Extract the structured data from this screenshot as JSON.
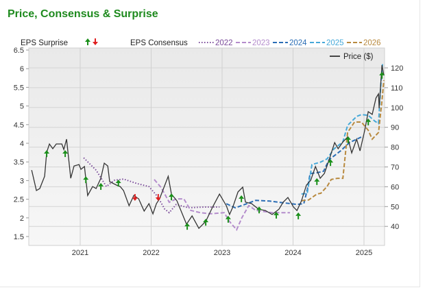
{
  "title": "Price, Consensus & Surprise",
  "colors": {
    "price": "#333333",
    "surprise_up": "#1a8f1a",
    "surprise_down": "#e02020",
    "c2022": "#7a4a9a",
    "c2023": "#b48ccc",
    "c2024": "#2a6db5",
    "c2025": "#45a8d8",
    "c2026": "#b8893e",
    "title": "#1e8a1e"
  },
  "chart_data": {
    "type": "line",
    "legend": {
      "surprise_label": "EPS Surprise",
      "consensus_label": "EPS Consensus",
      "price_label": "Price ($)",
      "placement": "top"
    },
    "x_ticks": [
      "2021",
      "2022",
      "2023",
      "2024",
      "2025"
    ],
    "y_left_ticks": [
      "6.5",
      "6",
      "5.5",
      "5",
      "4.5",
      "4",
      "3.5",
      "3",
      "2.5",
      "2",
      "1.5"
    ],
    "y_right_ticks": [
      "120",
      "110",
      "100",
      "90",
      "80",
      "70",
      "60",
      "50",
      "40"
    ],
    "y_left_range": [
      1.5,
      6.5
    ],
    "y_right_range": [
      40,
      120
    ],
    "grid": true,
    "price": {
      "name": "Price ($)",
      "points": [
        [
          "2020-04-24",
          68.4
        ],
        [
          "2020-05-18",
          58.1
        ],
        [
          "2020-06-05",
          59.1
        ],
        [
          "2020-06-30",
          65.3
        ],
        [
          "2020-07-10",
          77.4
        ],
        [
          "2020-07-24",
          81.6
        ],
        [
          "2020-08-11",
          79.2
        ],
        [
          "2020-08-29",
          81.6
        ],
        [
          "2020-09-27",
          81.6
        ],
        [
          "2020-10-07",
          78.8
        ],
        [
          "2020-10-21",
          84.0
        ],
        [
          "2020-11-12",
          64.3
        ],
        [
          "2020-11-29",
          70.5
        ],
        [
          "2020-12-24",
          71.2
        ],
        [
          "2021-01-04",
          68.8
        ],
        [
          "2021-01-22",
          70.2
        ],
        [
          "2021-02-08",
          55.6
        ],
        [
          "2021-03-03",
          60.1
        ],
        [
          "2021-03-21",
          59.1
        ],
        [
          "2021-04-15",
          64.3
        ],
        [
          "2021-05-02",
          71.9
        ],
        [
          "2021-05-20",
          70.5
        ],
        [
          "2021-05-30",
          62.6
        ],
        [
          "2021-07-05",
          60.8
        ],
        [
          "2021-07-23",
          60.1
        ],
        [
          "2021-08-10",
          58.1
        ],
        [
          "2021-09-08",
          50.4
        ],
        [
          "2021-10-02",
          55.6
        ],
        [
          "2021-10-27",
          53.9
        ],
        [
          "2021-11-25",
          47.7
        ],
        [
          "2021-12-19",
          51.5
        ],
        [
          "2022-01-09",
          46.3
        ],
        [
          "2022-01-27",
          51.5
        ],
        [
          "2022-02-13",
          53.9
        ],
        [
          "2022-03-27",
          65.3
        ],
        [
          "2022-04-13",
          56.3
        ],
        [
          "2022-05-11",
          52.9
        ],
        [
          "2022-06-30",
          41.1
        ],
        [
          "2022-07-28",
          45.3
        ],
        [
          "2022-09-02",
          39.0
        ],
        [
          "2022-10-07",
          42.5
        ],
        [
          "2022-11-12",
          49.8
        ],
        [
          "2022-12-17",
          56.3
        ],
        [
          "2023-01-22",
          50.4
        ],
        [
          "2023-02-08",
          46.0
        ],
        [
          "2023-02-25",
          49.8
        ],
        [
          "2023-03-21",
          57.4
        ],
        [
          "2023-04-15",
          59.8
        ],
        [
          "2023-04-29",
          52.2
        ],
        [
          "2023-05-30",
          51.5
        ],
        [
          "2023-07-05",
          48.7
        ],
        [
          "2023-08-10",
          48.0
        ],
        [
          "2023-09-14",
          46.0
        ],
        [
          "2023-10-19",
          48.7
        ],
        [
          "2023-11-10",
          52.2
        ],
        [
          "2023-12-04",
          54.6
        ],
        [
          "2024-01-02",
          49.8
        ],
        [
          "2024-01-20",
          48.0
        ],
        [
          "2024-02-13",
          52.9
        ],
        [
          "2024-03-08",
          60.8
        ],
        [
          "2024-03-30",
          63.3
        ],
        [
          "2024-04-24",
          70.2
        ],
        [
          "2024-05-18",
          64.3
        ],
        [
          "2024-06-09",
          66.7
        ],
        [
          "2024-07-03",
          73.6
        ],
        [
          "2024-08-01",
          82.3
        ],
        [
          "2024-08-19",
          79.2
        ],
        [
          "2024-09-13",
          82.6
        ],
        [
          "2024-10-07",
          85.1
        ],
        [
          "2024-10-28",
          77.1
        ],
        [
          "2024-11-23",
          84.0
        ],
        [
          "2024-12-10",
          78.1
        ],
        [
          "2025-01-04",
          88.5
        ],
        [
          "2025-01-22",
          97.9
        ],
        [
          "2025-02-12",
          96.5
        ],
        [
          "2025-03-01",
          104.8
        ],
        [
          "2025-03-14",
          106.9
        ],
        [
          "2025-03-17",
          99.6
        ],
        [
          "2025-04-01",
          121.4
        ],
        [
          "2025-04-11",
          116.2
        ]
      ]
    },
    "consensus": [
      {
        "name": "2022",
        "style": "dotted",
        "color_key": "c2022",
        "points": [
          [
            "2021-01-18",
            3.61
          ],
          [
            "2021-03-21",
            3.28
          ],
          [
            "2021-05-13",
            2.84
          ],
          [
            "2021-06-24",
            3.01
          ],
          [
            "2021-08-10",
            3.04
          ],
          [
            "2021-10-19",
            2.92
          ],
          [
            "2021-12-19",
            2.84
          ],
          [
            "2022-02-03",
            2.57
          ],
          [
            "2022-03-08",
            2.24
          ],
          [
            "2022-04-02",
            2.14
          ],
          [
            "2022-05-07",
            2.36
          ],
          [
            "2022-07-10",
            2.27
          ],
          [
            "2022-09-27",
            2.29
          ],
          [
            "2022-12-17",
            2.29
          ]
        ]
      },
      {
        "name": "2023",
        "style": "dashed",
        "color_key": "c2023",
        "points": [
          [
            "2022-01-16",
            3.03
          ],
          [
            "2022-02-20",
            2.82
          ],
          [
            "2022-04-02",
            2.42
          ],
          [
            "2022-05-07",
            2.51
          ],
          [
            "2022-06-16",
            2.51
          ],
          [
            "2022-07-21",
            2.2
          ],
          [
            "2022-09-09",
            2.14
          ],
          [
            "2022-11-01",
            2.11
          ],
          [
            "2023-01-11",
            2.14
          ],
          [
            "2023-02-08",
            1.9
          ],
          [
            "2023-03-14",
            1.68
          ],
          [
            "2023-04-11",
            2.01
          ],
          [
            "2023-05-16",
            2.33
          ],
          [
            "2023-06-21",
            2.2
          ],
          [
            "2023-09-14",
            2.14
          ],
          [
            "2023-12-15",
            2.14
          ]
        ]
      },
      {
        "name": "2024",
        "style": "dashed",
        "color_key": "c2024",
        "points": [
          [
            "2023-01-22",
            2.38
          ],
          [
            "2023-03-07",
            2.27
          ],
          [
            "2023-04-26",
            2.36
          ],
          [
            "2023-06-21",
            2.47
          ],
          [
            "2023-08-31",
            2.45
          ],
          [
            "2023-10-19",
            2.42
          ],
          [
            "2024-01-20",
            2.36
          ],
          [
            "2024-02-25",
            2.38
          ],
          [
            "2024-03-12",
            2.75
          ],
          [
            "2024-03-27",
            3.19
          ],
          [
            "2024-05-01",
            3.21
          ],
          [
            "2024-06-05",
            3.25
          ],
          [
            "2024-07-03",
            3.56
          ],
          [
            "2024-09-02",
            3.8
          ],
          [
            "2024-10-17",
            4.02
          ],
          [
            "2024-12-17",
            4.17
          ]
        ]
      },
      {
        "name": "2025",
        "style": "dashed",
        "color_key": "c2025",
        "points": [
          [
            "2024-02-13",
            2.64
          ],
          [
            "2024-03-12",
            2.66
          ],
          [
            "2024-04-06",
            3.43
          ],
          [
            "2024-05-18",
            3.49
          ],
          [
            "2024-06-23",
            3.58
          ],
          [
            "2024-07-28",
            3.85
          ],
          [
            "2024-09-13",
            4.04
          ],
          [
            "2024-10-07",
            4.48
          ],
          [
            "2024-11-23",
            4.72
          ],
          [
            "2024-12-17",
            4.77
          ],
          [
            "2025-01-22",
            4.75
          ],
          [
            "2025-02-26",
            4.59
          ],
          [
            "2025-03-14",
            4.53
          ],
          [
            "2025-03-24",
            5.45
          ],
          [
            "2025-04-04",
            6.13
          ]
        ]
      },
      {
        "name": "2026",
        "style": "dashed",
        "color_key": "c2026",
        "points": [
          [
            "2024-02-13",
            2.46
          ],
          [
            "2024-03-19",
            2.48
          ],
          [
            "2024-05-01",
            2.64
          ],
          [
            "2024-05-21",
            2.66
          ],
          [
            "2024-06-23",
            2.84
          ],
          [
            "2024-07-14",
            3.03
          ],
          [
            "2024-08-15",
            3.06
          ],
          [
            "2024-09-13",
            3.06
          ],
          [
            "2024-10-07",
            4.29
          ],
          [
            "2024-11-12",
            4.57
          ],
          [
            "2024-12-17",
            4.57
          ],
          [
            "2025-01-22",
            4.35
          ],
          [
            "2025-02-12",
            4.11
          ],
          [
            "2025-03-14",
            4.29
          ],
          [
            "2025-04-01",
            5.14
          ],
          [
            "2025-04-11",
            5.69
          ]
        ]
      }
    ],
    "surprises": [
      {
        "date": "2020-07-10",
        "eps": 3.76,
        "dir": "up"
      },
      {
        "date": "2020-10-14",
        "eps": 3.76,
        "dir": "up"
      },
      {
        "date": "2021-01-29",
        "eps": 3.06,
        "dir": "up"
      },
      {
        "date": "2021-04-15",
        "eps": 2.88,
        "dir": "up"
      },
      {
        "date": "2021-07-14",
        "eps": 2.97,
        "dir": "up"
      },
      {
        "date": "2021-10-08",
        "eps": 2.51,
        "dir": "down"
      },
      {
        "date": "2022-02-06",
        "eps": 2.51,
        "dir": "down"
      },
      {
        "date": "2022-04-13",
        "eps": 2.6,
        "dir": "up"
      },
      {
        "date": "2022-07-03",
        "eps": 1.81,
        "dir": "up"
      },
      {
        "date": "2022-10-07",
        "eps": 1.92,
        "dir": "up"
      },
      {
        "date": "2023-02-01",
        "eps": 2.0,
        "dir": "up"
      },
      {
        "date": "2023-04-08",
        "eps": 2.55,
        "dir": "up"
      },
      {
        "date": "2023-07-08",
        "eps": 2.25,
        "dir": "up"
      },
      {
        "date": "2023-10-05",
        "eps": 2.11,
        "dir": "up"
      },
      {
        "date": "2024-01-27",
        "eps": 2.09,
        "dir": "up"
      },
      {
        "date": "2024-05-01",
        "eps": 3.01,
        "dir": "up"
      },
      {
        "date": "2024-07-10",
        "eps": 3.52,
        "dir": "up"
      },
      {
        "date": "2024-10-10",
        "eps": 4.13,
        "dir": "up"
      },
      {
        "date": "2025-01-22",
        "eps": 4.61,
        "dir": "up"
      },
      {
        "date": "2025-04-01",
        "eps": 5.86,
        "dir": "up"
      }
    ]
  }
}
